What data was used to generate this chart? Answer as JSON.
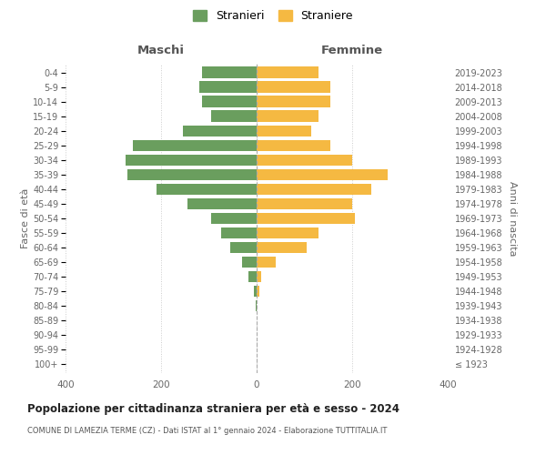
{
  "age_groups": [
    "100+",
    "95-99",
    "90-94",
    "85-89",
    "80-84",
    "75-79",
    "70-74",
    "65-69",
    "60-64",
    "55-59",
    "50-54",
    "45-49",
    "40-44",
    "35-39",
    "30-34",
    "25-29",
    "20-24",
    "15-19",
    "10-14",
    "5-9",
    "0-4"
  ],
  "birth_years": [
    "≤ 1923",
    "1924-1928",
    "1929-1933",
    "1934-1938",
    "1939-1943",
    "1944-1948",
    "1949-1953",
    "1954-1958",
    "1959-1963",
    "1964-1968",
    "1969-1973",
    "1974-1978",
    "1979-1983",
    "1984-1988",
    "1989-1993",
    "1994-1998",
    "1999-2003",
    "2004-2008",
    "2009-2013",
    "2014-2018",
    "2019-2023"
  ],
  "maschi": [
    0,
    0,
    0,
    0,
    2,
    5,
    18,
    30,
    55,
    75,
    95,
    145,
    210,
    270,
    275,
    260,
    155,
    95,
    115,
    120,
    115
  ],
  "femmine": [
    0,
    0,
    0,
    0,
    0,
    5,
    10,
    40,
    105,
    130,
    205,
    200,
    240,
    275,
    200,
    155,
    115,
    130,
    155,
    155,
    130
  ],
  "color_maschi": "#6a9e5e",
  "color_femmine": "#f5b942",
  "title": "Popolazione per cittadinanza straniera per età e sesso - 2024",
  "subtitle": "COMUNE DI LAMEZIA TERME (CZ) - Dati ISTAT al 1° gennaio 2024 - Elaborazione TUTTITALIA.IT",
  "xlabel_left": "Maschi",
  "xlabel_right": "Femmine",
  "ylabel_left": "Fasce di età",
  "ylabel_right": "Anni di nascita",
  "legend_maschi": "Stranieri",
  "legend_femmine": "Straniere",
  "xlim": 400,
  "background_color": "#ffffff",
  "grid_color": "#cccccc"
}
